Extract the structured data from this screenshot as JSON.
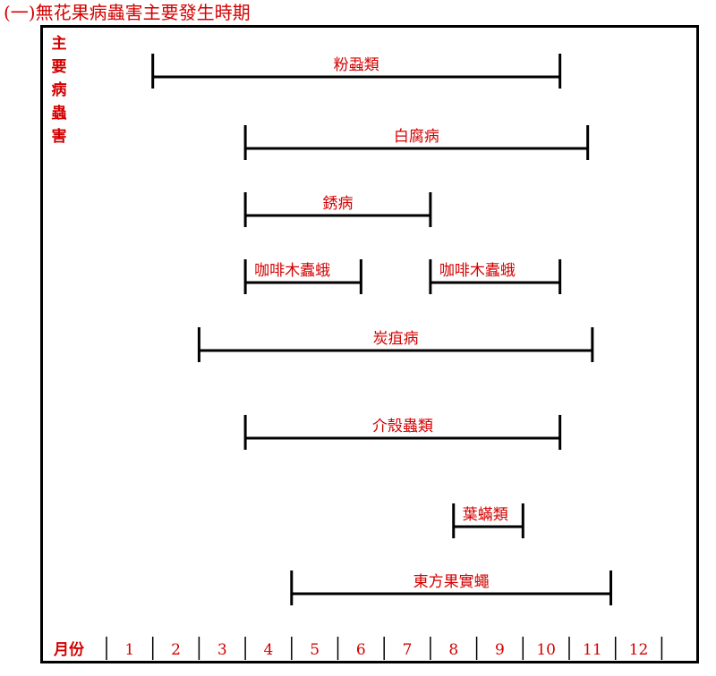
{
  "title": "(一)無花果病蟲害主要發生時期",
  "vertical_label": [
    "主",
    "要",
    "病",
    "蟲",
    "害"
  ],
  "axis_title": "月份",
  "months": [
    "1",
    "2",
    "3",
    "4",
    "5",
    "6",
    "7",
    "8",
    "9",
    "10",
    "11",
    "12"
  ],
  "colors": {
    "text": "#d40000",
    "line": "#000000"
  },
  "periods": [
    {
      "name": "粉蝨類",
      "start": 1,
      "end": 9.8
    },
    {
      "name": "白腐病",
      "start": 3,
      "end": 10.4
    },
    {
      "name": "銹病",
      "start": 3,
      "end": 7
    },
    {
      "name": "咖啡木蠹蛾",
      "start": 3,
      "end": 5.5
    },
    {
      "name": "咖啡木蠹蛾",
      "start": 7,
      "end": 9.8
    },
    {
      "name": "炭疽病",
      "start": 2,
      "end": 10.5
    },
    {
      "name": "介殼蟲類",
      "start": 3,
      "end": 9.8
    },
    {
      "name": "葉蟎類",
      "start": 7.5,
      "end": 9
    },
    {
      "name": "東方果實蠅",
      "start": 4,
      "end": 10.9
    }
  ]
}
